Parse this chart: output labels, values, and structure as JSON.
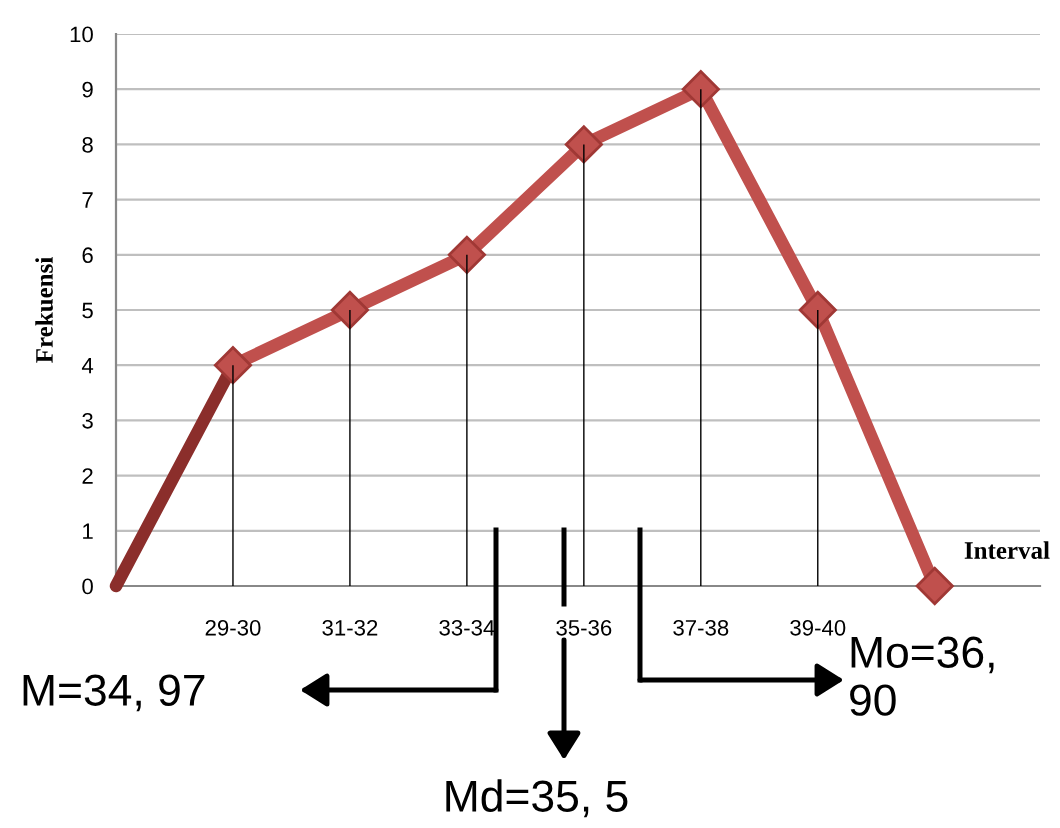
{
  "chart_data": {
    "type": "line",
    "xlabel": "Interval",
    "ylabel": "Frekuensi",
    "categories": [
      null,
      "29-30",
      "31-32",
      "33-34",
      "35-36",
      "37-38",
      "39-40",
      null
    ],
    "ylim": [
      0,
      10
    ],
    "yticks": [
      0,
      1,
      2,
      3,
      4,
      5,
      6,
      7,
      8,
      9,
      10
    ],
    "grid": "y",
    "marker": "diamond",
    "line_style": "solid",
    "series": [
      {
        "type": "bar",
        "color": "#000000",
        "values": [
          null,
          4,
          5,
          6,
          8,
          9,
          5,
          null
        ]
      },
      {
        "color": "#8b2e2b",
        "values": [
          0,
          4,
          null,
          null,
          null,
          null,
          null,
          null
        ],
        "marker": "none"
      },
      {
        "color": "#c0504d",
        "values": [
          null,
          4,
          5,
          6,
          8,
          9,
          5,
          0
        ]
      }
    ],
    "annotations": [
      "M=34, 97",
      "Md=35, 5",
      "Mo=36, 90"
    ]
  }
}
